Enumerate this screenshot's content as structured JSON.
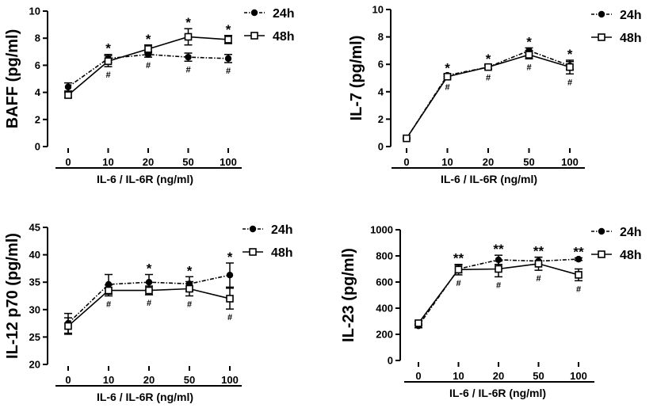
{
  "chart_data": [
    {
      "type": "line",
      "ylabel": "BAFF (pg/ml)",
      "xlabel": "IL-6 / IL-6R (ng/ml)",
      "categories": [
        "0",
        "10",
        "20",
        "50",
        "100"
      ],
      "ylim": [
        0,
        10
      ],
      "yticks": [
        0,
        2,
        4,
        6,
        8,
        10
      ],
      "legend": [
        "24h",
        "48h"
      ],
      "series": [
        {
          "name": "24h",
          "values": [
            4.4,
            6.5,
            6.8,
            6.6,
            6.5
          ],
          "errors": [
            0.3,
            0.3,
            0.2,
            0.3,
            0.3
          ]
        },
        {
          "name": "48h",
          "values": [
            3.8,
            6.3,
            7.2,
            8.1,
            7.9
          ],
          "errors": [
            0.2,
            0.4,
            0.3,
            0.6,
            0.3
          ]
        }
      ],
      "annot_24h": [
        "",
        "*",
        "*",
        "*",
        "*"
      ],
      "annot_48h": [
        "",
        "#",
        "#",
        "#",
        "#"
      ]
    },
    {
      "type": "line",
      "ylabel": "IL-7 (pg/ml)",
      "xlabel": "IL-6 / IL-6R (ng/ml)",
      "categories": [
        "0",
        "10",
        "20",
        "50",
        "100"
      ],
      "ylim": [
        0,
        10
      ],
      "yticks": [
        0,
        2,
        4,
        6,
        8,
        10
      ],
      "legend": [
        "24h",
        "48h"
      ],
      "series": [
        {
          "name": "24h",
          "values": [
            0.6,
            5.2,
            5.8,
            7.0,
            5.9
          ],
          "errors": [
            0.05,
            0.1,
            0.15,
            0.2,
            0.3
          ]
        },
        {
          "name": "48h",
          "values": [
            0.6,
            5.1,
            5.8,
            6.7,
            5.8
          ],
          "errors": [
            0.05,
            0.15,
            0.15,
            0.3,
            0.5
          ]
        }
      ],
      "annot_24h": [
        "",
        "*",
        "*",
        "*",
        "*"
      ],
      "annot_48h": [
        "",
        "#",
        "#",
        "#",
        "#"
      ]
    },
    {
      "type": "line",
      "ylabel": "IL-12 p70 (pg/ml)",
      "xlabel": "IL-6 / IL-6R (ng/ml)",
      "categories": [
        "0",
        "10",
        "20",
        "50",
        "100"
      ],
      "ylim": [
        20,
        45
      ],
      "yticks": [
        20,
        25,
        30,
        35,
        40,
        45
      ],
      "legend": [
        "24h",
        "48h"
      ],
      "series": [
        {
          "name": "24h",
          "values": [
            27.5,
            34.6,
            35.0,
            34.7,
            36.3
          ],
          "errors": [
            1.8,
            1.8,
            1.4,
            1.3,
            2.2
          ]
        },
        {
          "name": "48h",
          "values": [
            27.0,
            33.5,
            33.5,
            33.8,
            32.0
          ],
          "errors": [
            1.5,
            1.0,
            0.8,
            1.3,
            1.9
          ]
        }
      ],
      "annot_24h": [
        "",
        "",
        "*",
        "*",
        "*"
      ],
      "annot_48h": [
        "",
        "#",
        "#",
        "#",
        "#"
      ]
    },
    {
      "type": "line",
      "ylabel": "IL-23 (pg/ml)",
      "xlabel": "IL-6 / IL-6R (ng/ml)",
      "categories": [
        "0",
        "10",
        "20",
        "50",
        "100"
      ],
      "ylim": [
        0,
        1000
      ],
      "yticks": [
        0,
        200,
        400,
        600,
        800,
        1000
      ],
      "legend": [
        "24h",
        "48h"
      ],
      "series": [
        {
          "name": "24h",
          "values": [
            265,
            700,
            770,
            760,
            775
          ],
          "errors": [
            15,
            30,
            35,
            30,
            10
          ]
        },
        {
          "name": "48h",
          "values": [
            285,
            695,
            700,
            740,
            655
          ],
          "errors": [
            15,
            40,
            60,
            50,
            45
          ]
        }
      ],
      "annot_24h": [
        "",
        "**",
        "**",
        "**",
        "**"
      ],
      "annot_48h": [
        "",
        "#",
        "#",
        "#",
        "#"
      ]
    }
  ]
}
